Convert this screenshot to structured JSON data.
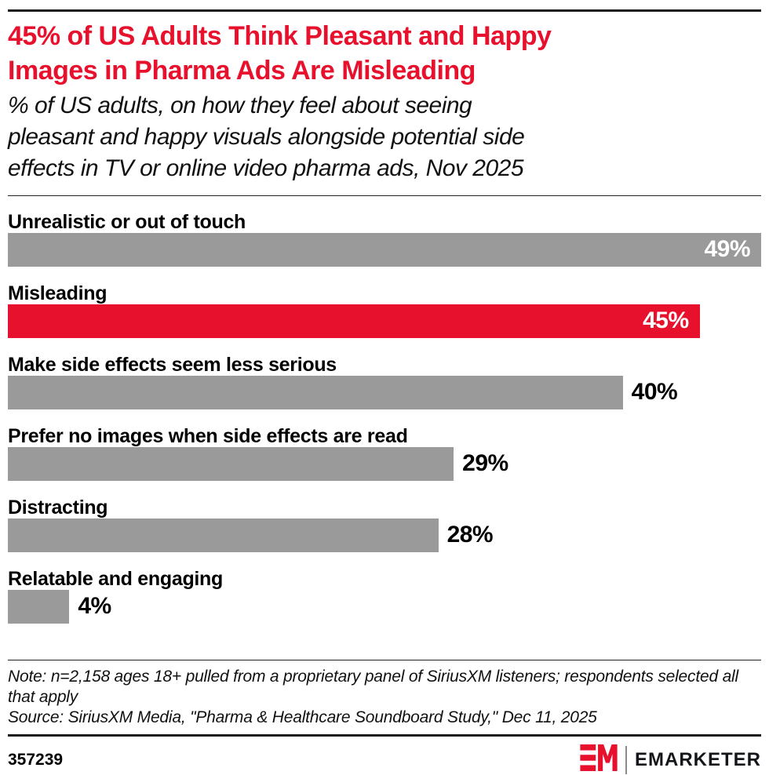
{
  "header": {
    "title_lines": [
      "45% of US Adults Think Pleasant and Happy",
      "Images in Pharma Ads Are Misleading"
    ],
    "subtitle_lines": [
      "% of US adults, on how they feel about seeing",
      "pleasant and happy visuals alongside potential side",
      "effects in TV or online video pharma ads, Nov 2025"
    ]
  },
  "chart_data": {
    "type": "bar",
    "orientation": "horizontal",
    "title": "45% of US Adults Think Pleasant and Happy Images in Pharma Ads Are Misleading",
    "subtitle": "% of US adults, on how they feel about seeing pleasant and happy visuals alongside potential side effects in TV or online video pharma ads, Nov 2025",
    "categories": [
      "Unrealistic or out of touch",
      "Misleading",
      "Make side effects seem less serious",
      "Prefer no images when side effects are read",
      "Distracting",
      "Relatable and engaging"
    ],
    "values": [
      49,
      45,
      40,
      29,
      28,
      4
    ],
    "value_labels": [
      "49%",
      "45%",
      "40%",
      "29%",
      "28%",
      "4%"
    ],
    "value_label_inside": [
      true,
      true,
      false,
      false,
      false,
      false
    ],
    "highlight_index": 1,
    "xlim": [
      0,
      49
    ],
    "grid": false,
    "legend": "none",
    "unit": "%"
  },
  "footer": {
    "note": "Note: n=2,158 ages 18+ pulled from a proprietary panel of SiriusXM listeners; respondents selected all that apply",
    "source": "Source: SiriusXM Media, \"Pharma & Healthcare Soundboard Study,\" Dec 11, 2025",
    "chart_id": "357239",
    "brand_wordmark": "EMARKETER"
  },
  "icons": {
    "em_logo_mark": "emarketer-em-monogram"
  },
  "colors": {
    "accent_red": "#E8112D",
    "bar_gray": "#9A9A9A",
    "rule_black": "#1A1A1A",
    "value_text_inside": "#FFFFFF",
    "value_text_outside": "#000000"
  }
}
